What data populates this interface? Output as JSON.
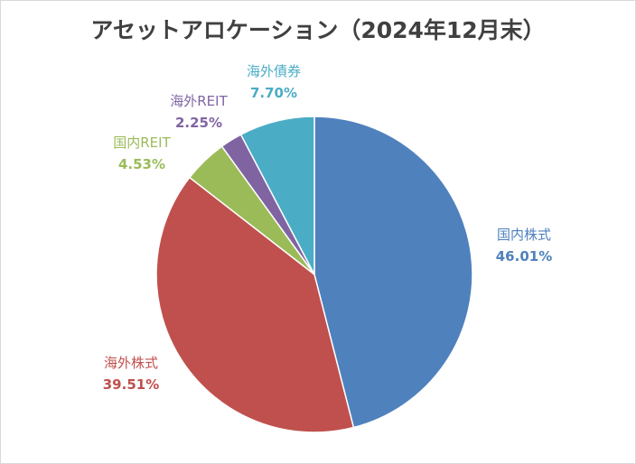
{
  "chart_data": {
    "type": "pie",
    "title": "アセットアロケーション（2024年12月末）",
    "start_angle_deg": 0,
    "direction": "clockwise",
    "slices": [
      {
        "label": "国内株式",
        "value": 46.01,
        "value_label": "46.01%",
        "color": "#4f81bd"
      },
      {
        "label": "海外株式",
        "value": 39.51,
        "value_label": "39.51%",
        "color": "#c0504d"
      },
      {
        "label": "国内REIT",
        "value": 4.53,
        "value_label": "4.53%",
        "color": "#9bbb59"
      },
      {
        "label": "海外REIT",
        "value": 2.25,
        "value_label": "2.25%",
        "color": "#8064a2"
      },
      {
        "label": "海外債券",
        "value": 7.7,
        "value_label": "7.70%",
        "color": "#4bacc6"
      }
    ],
    "legend": "none",
    "data_labels": "outside"
  }
}
